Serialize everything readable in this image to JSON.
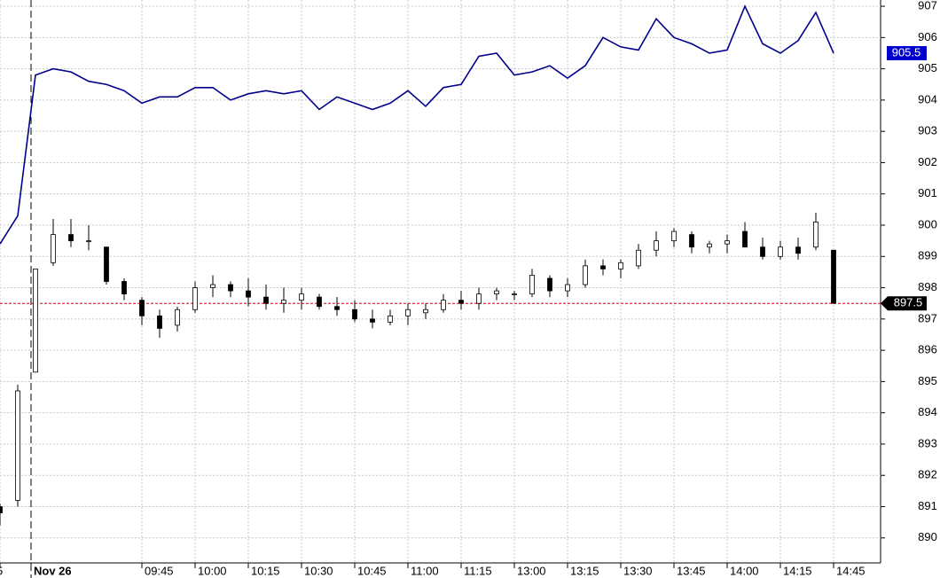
{
  "chart_data": {
    "type": "candlestick",
    "x": [
      -2,
      -1,
      0,
      1,
      2,
      3,
      4,
      5,
      6,
      7,
      8,
      9,
      10,
      11,
      12,
      13,
      14,
      15,
      16,
      17,
      18,
      19,
      20,
      21,
      22,
      23,
      24,
      25,
      26,
      27,
      28,
      29,
      30,
      31,
      32,
      33,
      34,
      35,
      36,
      37,
      38,
      39,
      40,
      41,
      42,
      43,
      44,
      45
    ],
    "open": [
      891,
      891.2,
      895.3,
      898.8,
      899.7,
      899.5,
      899.3,
      898.2,
      897.6,
      897.1,
      896.8,
      897.3,
      898,
      898.1,
      897.9,
      897.7,
      897.5,
      897.6,
      897.7,
      897.4,
      897.3,
      897,
      896.9,
      897.1,
      897.2,
      897.3,
      897.6,
      897.5,
      897.8,
      897.8,
      897.8,
      898.3,
      897.9,
      898.1,
      898.7,
      898.6,
      898.7,
      899.2,
      899.5,
      899.7,
      899.3,
      899.4,
      899.8,
      899.3,
      899,
      899.3,
      899.3,
      899.2
    ],
    "high": [
      891.1,
      894.9,
      898.6,
      900.2,
      900.2,
      900,
      899.3,
      898.3,
      897.7,
      897.3,
      897.4,
      898.2,
      898.4,
      898.2,
      898.3,
      898.1,
      898,
      898,
      897.8,
      897.7,
      897.6,
      897.3,
      897.3,
      897.5,
      897.5,
      897.8,
      897.9,
      898,
      898,
      897.9,
      898.6,
      898.4,
      898.3,
      898.9,
      898.9,
      898.9,
      899.4,
      899.8,
      899.9,
      899.8,
      899.5,
      899.7,
      900.1,
      899.6,
      899.5,
      899.6,
      900.4,
      899.2
    ],
    "low": [
      890.4,
      891,
      895.3,
      898.7,
      899.3,
      899.2,
      898.1,
      897.6,
      896.8,
      896.4,
      896.6,
      897.2,
      897.7,
      897.7,
      897.4,
      897.3,
      897.2,
      897.3,
      897.3,
      897.1,
      896.9,
      896.7,
      896.8,
      896.8,
      897,
      897.2,
      897.3,
      897.3,
      897.6,
      897.6,
      897.7,
      897.7,
      897.7,
      898,
      898.4,
      898.3,
      898.6,
      899,
      899.3,
      899.1,
      899.1,
      899.1,
      899.3,
      898.9,
      898.9,
      898.9,
      899.2,
      897.5
    ],
    "close": [
      890.8,
      894.7,
      898.6,
      899.7,
      899.5,
      899.5,
      898.2,
      897.8,
      897.1,
      896.7,
      897.3,
      898,
      898.1,
      897.9,
      897.7,
      897.5,
      897.6,
      897.8,
      897.4,
      897.3,
      897,
      896.9,
      897.1,
      897.3,
      897.3,
      897.6,
      897.5,
      897.8,
      897.9,
      897.8,
      898.4,
      897.9,
      898.1,
      898.7,
      898.6,
      898.8,
      899.2,
      899.5,
      899.8,
      899.3,
      899.4,
      899.5,
      899.3,
      899,
      899.3,
      899.1,
      900.1,
      897.5
    ],
    "up_color": "#ffffff",
    "down_color": "#000000",
    "line": {
      "color": "#00008b",
      "values": [
        899.4,
        900.3,
        904.8,
        905.0,
        904.9,
        904.6,
        904.5,
        904.3,
        903.9,
        904.1,
        904.1,
        904.4,
        904.4,
        904.0,
        904.2,
        904.3,
        904.2,
        904.3,
        903.7,
        904.1,
        903.9,
        903.7,
        903.9,
        904.3,
        903.8,
        904.4,
        904.5,
        905.4,
        905.5,
        904.8,
        904.9,
        905.1,
        904.7,
        905.1,
        906.0,
        905.7,
        905.6,
        906.6,
        906.0,
        905.8,
        905.5,
        905.6,
        907.0,
        905.8,
        905.5,
        905.9,
        906.8,
        905.5
      ]
    },
    "last_line": 905.5,
    "last_price": 897.5,
    "ylim": [
      889.2,
      907.2
    ],
    "yticks": [
      890,
      891,
      892,
      893,
      894,
      895,
      896,
      897,
      898,
      899,
      900,
      901,
      902,
      903,
      904,
      905,
      906,
      907
    ],
    "xlim": [
      -2,
      47.65
    ],
    "xticks": [
      {
        "value": -2,
        "label": "5"
      },
      {
        "value": -0.25,
        "label": "Nov 26"
      },
      {
        "value": 6,
        "label": "09:45"
      },
      {
        "value": 9,
        "label": "10:00"
      },
      {
        "value": 12,
        "label": "10:15"
      },
      {
        "value": 15,
        "label": "10:30"
      },
      {
        "value": 18,
        "label": "10:45"
      },
      {
        "value": 21,
        "label": "11:00"
      },
      {
        "value": 24,
        "label": "11:15"
      },
      {
        "value": 27,
        "label": "13:00"
      },
      {
        "value": 30,
        "label": "13:15"
      },
      {
        "value": 33,
        "label": "13:30"
      },
      {
        "value": 36,
        "label": "13:45"
      },
      {
        "value": 39,
        "label": "14:00"
      },
      {
        "value": 42,
        "label": "14:15"
      },
      {
        "value": 45,
        "label": "14:45"
      }
    ],
    "grid": true
  }
}
